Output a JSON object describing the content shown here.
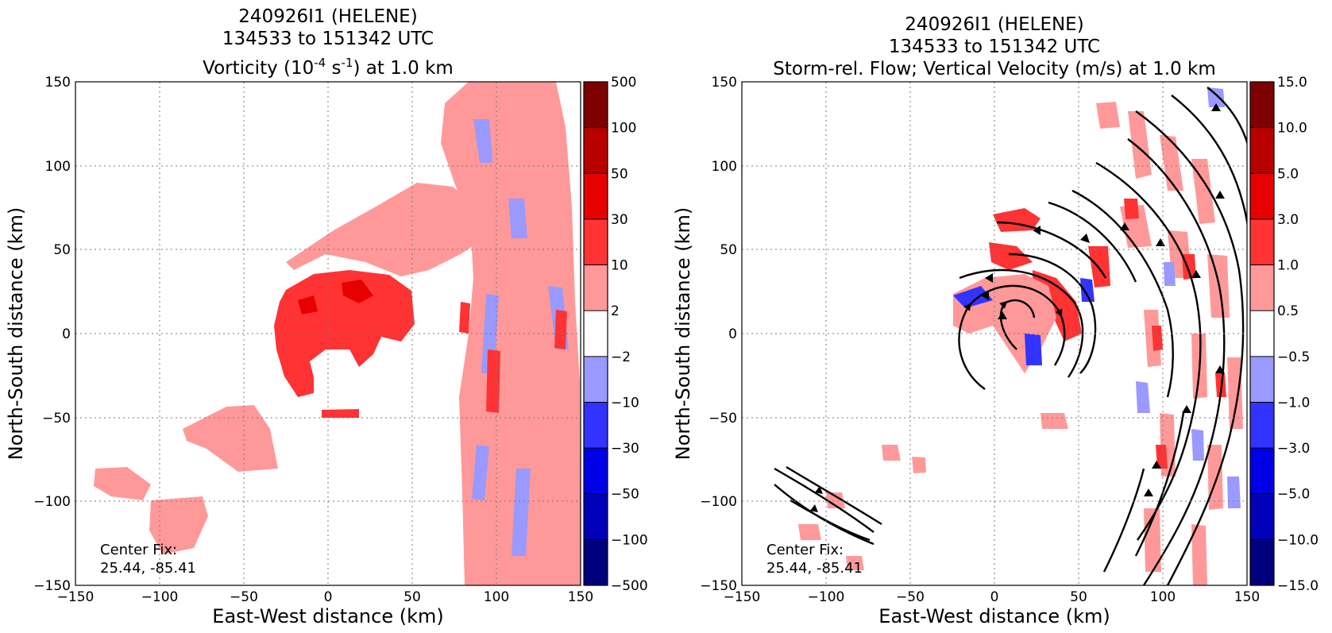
{
  "chart_data": [
    {
      "type": "heatmap",
      "title_lines": [
        "240926I1 (HELENE)",
        "134533 to 151342 UTC"
      ],
      "title_line3": {
        "pre": "Vorticity (10",
        "sup1": "-4",
        "mid": " s",
        "sup2": "-1",
        "post": ") at 1.0 km"
      },
      "xlabel": "East-West distance (km)",
      "ylabel": "North-South distance (km)",
      "xlim": [
        -150,
        150
      ],
      "ylim": [
        -150,
        150
      ],
      "xticks": [
        "−150",
        "−100",
        "−50",
        "0",
        "50",
        "100",
        "150"
      ],
      "yticks": [
        "−150",
        "−100",
        "−50",
        "0",
        "50",
        "100",
        "150"
      ],
      "grid": true,
      "colorbar": {
        "ticks": [
          "500",
          "100",
          "50",
          "30",
          "10",
          "2",
          "−2",
          "−10",
          "−30",
          "−50",
          "−100",
          "−500"
        ],
        "colors": [
          "#7f0000",
          "#b80000",
          "#e60000",
          "#ff3333",
          "#ff9999",
          "#ffffff",
          "#9999ff",
          "#3333ff",
          "#0000e6",
          "#0000b8",
          "#00007f"
        ]
      },
      "annotation": [
        "Center Fix:",
        "25.44, -85.41"
      ]
    },
    {
      "type": "heatmap",
      "title_lines": [
        "240926I1 (HELENE)",
        "134533 to 151342 UTC",
        "Storm-rel. Flow; Vertical Velocity (m/s) at 1.0 km"
      ],
      "xlabel": "East-West distance (km)",
      "ylabel": "North-South distance (km)",
      "xlim": [
        -150,
        150
      ],
      "ylim": [
        -150,
        150
      ],
      "xticks": [
        "−150",
        "−100",
        "−50",
        "0",
        "50",
        "100",
        "150"
      ],
      "yticks": [
        "−150",
        "−100",
        "−50",
        "0",
        "50",
        "100",
        "150"
      ],
      "grid": true,
      "colorbar": {
        "ticks": [
          "15.0",
          "10.0",
          "5.0",
          "3.0",
          "1.0",
          "0.5",
          "−0.5",
          "−1.0",
          "−3.0",
          "−5.0",
          "−10.0",
          "−15.0"
        ],
        "colors": [
          "#7f0000",
          "#b80000",
          "#e60000",
          "#ff3333",
          "#ff9999",
          "#ffffff",
          "#9999ff",
          "#3333ff",
          "#0000e6",
          "#0000b8",
          "#00007f"
        ]
      },
      "annotation": [
        "Center Fix:",
        "25.44, -85.41"
      ],
      "streamlines": "storm-relative flow, cyclonic (counter-clockwise) circulation"
    }
  ]
}
